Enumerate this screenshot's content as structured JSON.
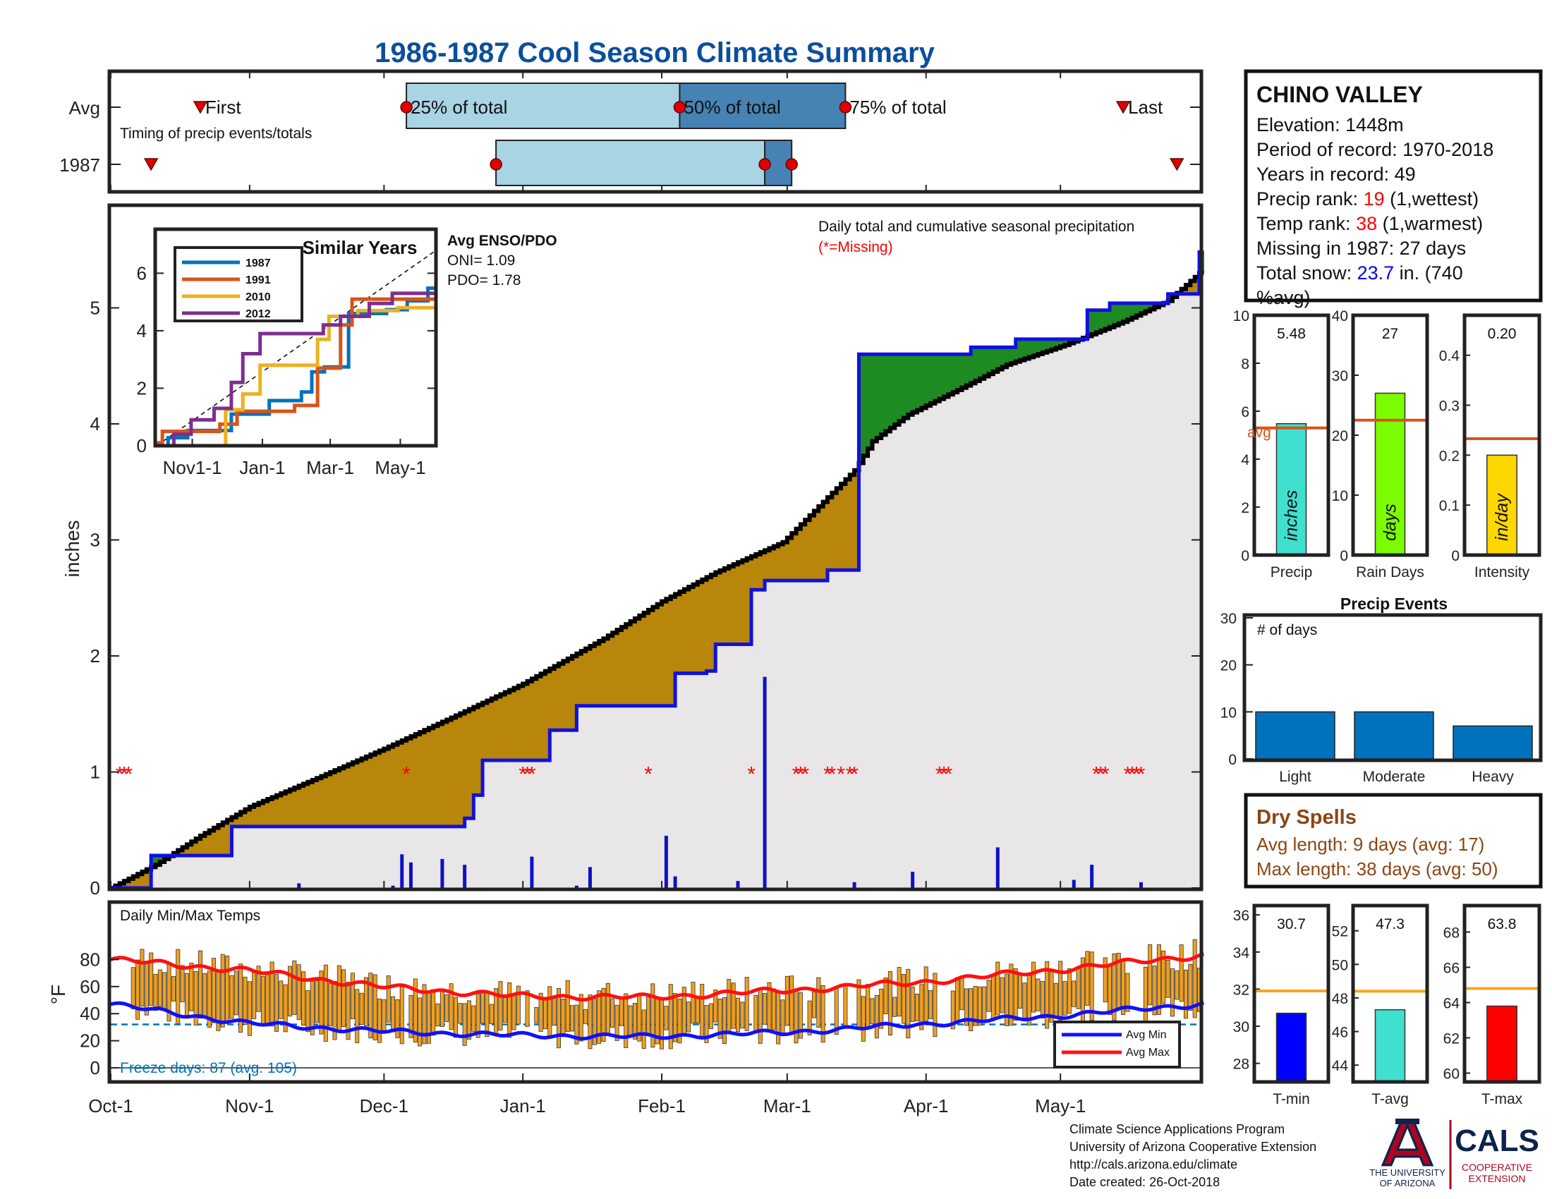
{
  "title": "1986-1987 Cool Season Climate Summary",
  "colors": {
    "title": "#0b4f9c",
    "green": "#1e8a22",
    "brown": "#b8860b",
    "blue": "#1010e0",
    "gray_fill": "#e8e6e6",
    "red": "#ff0000",
    "light_blue": "#a8d4e4",
    "mid_blue": "#4682b4",
    "orange_line": "#d95319",
    "dry": "#8b4513",
    "bar_blue": "#0072bd",
    "temp_bar": "#f0a020"
  },
  "timing": {
    "avg_label": "Avg",
    "year_label": "1987",
    "first_label": "First",
    "last_label": "Last",
    "pct25_label": "25% of total",
    "pct50_label": "50% of total",
    "pct75_label": "75% of total",
    "caption": "Timing of precip events/totals",
    "avg_first_day": 20,
    "avg_last_day": 226,
    "avg_25_day": 66,
    "avg_50_day": 127,
    "avg_75_day": 164,
    "yr_first_day": 9,
    "yr_last_day": 238,
    "yr_25_day": 86,
    "yr_50_day": 146,
    "yr_75_day": 152
  },
  "station": {
    "name": "CHINO VALLEY",
    "elevation": "Elevation: 1448m",
    "period": "Period of record: 1970-2018",
    "years": "Years in record: 49",
    "precip_rank_prefix": "Precip rank: ",
    "precip_rank": "19",
    "precip_rank_suffix": " (1,wettest)",
    "temp_rank_prefix": "Temp rank: ",
    "temp_rank": "38",
    "temp_rank_suffix": " (1,warmest)",
    "missing": "Missing in 1987: 27 days",
    "snow_prefix": "Total snow: ",
    "snow_value": "23.7",
    "snow_suffix": " in. (740",
    "snow_suffix2": "%avg)"
  },
  "main_chart": {
    "ylabel": "inches",
    "legend_title": "Daily total and cumulative seasonal precipitation",
    "legend_missing": "(*=Missing)",
    "x_ticks": [
      "Oct-1",
      "Nov-1",
      "Dec-1",
      "Jan-1",
      "Feb-1",
      "Mar-1",
      "Apr-1",
      "May-1"
    ],
    "y_ticks": [
      "0",
      "1",
      "2",
      "3",
      "4",
      "5"
    ],
    "enso_title": "Avg ENSO/PDO",
    "oni": "ONI= 1.09",
    "pdo": "PDO= 1.78"
  },
  "inset": {
    "title": "Similar Years",
    "x_ticks": [
      "Nov1-1",
      "Jan-1",
      "Mar-1",
      "May-1"
    ],
    "y_ticks": [
      "0",
      "2",
      "4",
      "6"
    ],
    "legend": [
      "1987",
      "1991",
      "2010",
      "2012"
    ],
    "colors": [
      "#0072bd",
      "#d95319",
      "#edb120",
      "#7e2f8e"
    ]
  },
  "temp_chart": {
    "title": "Daily Min/Max Temps",
    "ylabel": "°F",
    "y_ticks": [
      "0",
      "20",
      "40",
      "60",
      "80"
    ],
    "freeze": "Freeze days: 87 (avg. 105)",
    "legend_min": "Avg Min",
    "legend_max": "Avg Max"
  },
  "mini_precip": {
    "value_label": "5.48",
    "bar_label": "inches",
    "xlabel": "Precip",
    "avg_label": "avg",
    "ticks": [
      "0",
      "2",
      "4",
      "6",
      "8",
      "10"
    ],
    "value": 5.48,
    "avg": 5.3
  },
  "mini_days": {
    "value_label": "27",
    "bar_label": "days",
    "xlabel": "Rain Days",
    "ticks": [
      "0",
      "10",
      "20",
      "30",
      "40"
    ],
    "value": 27,
    "avg": 22.5
  },
  "mini_intensity": {
    "value_label": "0.20",
    "bar_label": "in/day",
    "xlabel": "Intensity",
    "ticks": [
      "0",
      "0.1",
      "0.2",
      "0.3",
      "0.4"
    ],
    "value": 0.2,
    "avg": 0.233
  },
  "events": {
    "title": "Precip Events",
    "ylabel": "# of days",
    "categories": [
      "Light",
      "Moderate",
      "Heavy"
    ],
    "values": [
      10,
      10,
      7
    ],
    "ticks": [
      "0",
      "10",
      "20",
      "30"
    ]
  },
  "dry_spells": {
    "title": "Dry Spells",
    "avg": "Avg length: 9 days (avg: 17)",
    "max": "Max length: 38 days (avg: 50)"
  },
  "mini_tmin": {
    "value_label": "30.7",
    "xlabel": "T-min",
    "ticks": [
      "28",
      "30",
      "32",
      "34",
      "36"
    ],
    "value": 30.7,
    "avg": 31.9
  },
  "mini_tavg": {
    "value_label": "47.3",
    "xlabel": "T-avg",
    "ticks": [
      "44",
      "46",
      "48",
      "50",
      "52"
    ],
    "value": 47.3,
    "avg": 48.4
  },
  "mini_tmax": {
    "value_label": "63.8",
    "xlabel": "T-max",
    "ticks": [
      "60",
      "62",
      "64",
      "66",
      "68"
    ],
    "value": 63.8,
    "avg": 64.8
  },
  "footer": {
    "line1": "Climate Science Applications Program",
    "line2": "University of Arizona Cooperative Extension",
    "line3": "http://cals.arizona.edu/climate",
    "line4": " Date created: 26-Oct-2018"
  },
  "logos": {
    "ua_line1": "THE UNIVERSITY",
    "ua_line2": "OF ARIZONA",
    "cals": "CALS",
    "cals_line1": "COOPERATIVE",
    "cals_line2": "EXTENSION"
  },
  "chart_data": {
    "type": "area",
    "title": "1986-1987 Cool Season Climate Summary",
    "xlabel": "",
    "ylabel": "inches",
    "x_range": [
      "Oct-1",
      "May-31"
    ],
    "ylim": [
      0,
      5.9
    ],
    "cumulative_1987": [
      [
        0,
        0
      ],
      [
        9,
        0
      ],
      [
        9,
        0.28
      ],
      [
        27,
        0.28
      ],
      [
        27,
        0.53
      ],
      [
        65,
        0.53
      ],
      [
        79,
        0.53
      ],
      [
        79,
        0.6
      ],
      [
        81,
        0.6
      ],
      [
        81,
        0.8
      ],
      [
        83,
        0.8
      ],
      [
        83,
        1.1
      ],
      [
        98,
        1.1
      ],
      [
        98,
        1.36
      ],
      [
        104,
        1.36
      ],
      [
        104,
        1.57
      ],
      [
        126,
        1.57
      ],
      [
        126,
        1.85
      ],
      [
        133,
        1.85
      ],
      [
        133,
        1.87
      ],
      [
        135,
        1.87
      ],
      [
        135,
        2.1
      ],
      [
        143,
        2.1
      ],
      [
        143,
        2.57
      ],
      [
        146,
        2.57
      ],
      [
        146,
        2.65
      ],
      [
        160,
        2.65
      ],
      [
        160,
        2.74
      ],
      [
        167,
        2.74
      ],
      [
        167,
        4.6
      ],
      [
        181,
        4.6
      ],
      [
        181,
        4.6
      ],
      [
        192,
        4.6
      ],
      [
        192,
        4.66
      ],
      [
        202,
        4.66
      ],
      [
        202,
        4.73
      ],
      [
        218,
        4.73
      ],
      [
        218,
        4.98
      ],
      [
        223,
        4.98
      ],
      [
        223,
        5.04
      ],
      [
        236,
        5.04
      ],
      [
        236,
        5.12
      ],
      [
        243,
        5.12
      ],
      [
        243,
        5.48
      ]
    ],
    "cumulative_average": [
      [
        0,
        0
      ],
      [
        10,
        0.2
      ],
      [
        20,
        0.45
      ],
      [
        31,
        0.7
      ],
      [
        45,
        0.93
      ],
      [
        61,
        1.2
      ],
      [
        75,
        1.45
      ],
      [
        92,
        1.76
      ],
      [
        110,
        2.15
      ],
      [
        123,
        2.47
      ],
      [
        135,
        2.72
      ],
      [
        150,
        2.98
      ],
      [
        157,
        3.25
      ],
      [
        166,
        3.6
      ],
      [
        170,
        3.85
      ],
      [
        178,
        4.08
      ],
      [
        192,
        4.35
      ],
      [
        200,
        4.51
      ],
      [
        213,
        4.68
      ],
      [
        226,
        4.88
      ],
      [
        236,
        5.06
      ],
      [
        243,
        5.3
      ]
    ],
    "daily_precip": [
      [
        42,
        0.04
      ],
      [
        63,
        0.02
      ],
      [
        65,
        0.29
      ],
      [
        67,
        0.22
      ],
      [
        74,
        0.25
      ],
      [
        79,
        0.2
      ],
      [
        94,
        0.27
      ],
      [
        104,
        0.02
      ],
      [
        107,
        0.18
      ],
      [
        124,
        0.45
      ],
      [
        126,
        0.1
      ],
      [
        140,
        0.06
      ],
      [
        146,
        1.82
      ],
      [
        166,
        0.05
      ],
      [
        179,
        0.14
      ],
      [
        198,
        0.35
      ],
      [
        215,
        0.07
      ],
      [
        219,
        0.2
      ],
      [
        230,
        0.05
      ]
    ],
    "missing_days": [
      2,
      3,
      4,
      66,
      92,
      93,
      94,
      120,
      143,
      153,
      154,
      155,
      160,
      161,
      163,
      165,
      166,
      185,
      186,
      187,
      220,
      221,
      222,
      227,
      228,
      229,
      230
    ],
    "avg_max_temp": [
      [
        0,
        80
      ],
      [
        30,
        72
      ],
      [
        60,
        60
      ],
      [
        90,
        53
      ],
      [
        120,
        52
      ],
      [
        150,
        57
      ],
      [
        180,
        63
      ],
      [
        210,
        72
      ],
      [
        243,
        83
      ]
    ],
    "avg_min_temp": [
      [
        0,
        47
      ],
      [
        30,
        33
      ],
      [
        60,
        27
      ],
      [
        90,
        24
      ],
      [
        120,
        23
      ],
      [
        150,
        26
      ],
      [
        180,
        32
      ],
      [
        210,
        38
      ],
      [
        243,
        47
      ]
    ],
    "freeze_line": 32
  }
}
